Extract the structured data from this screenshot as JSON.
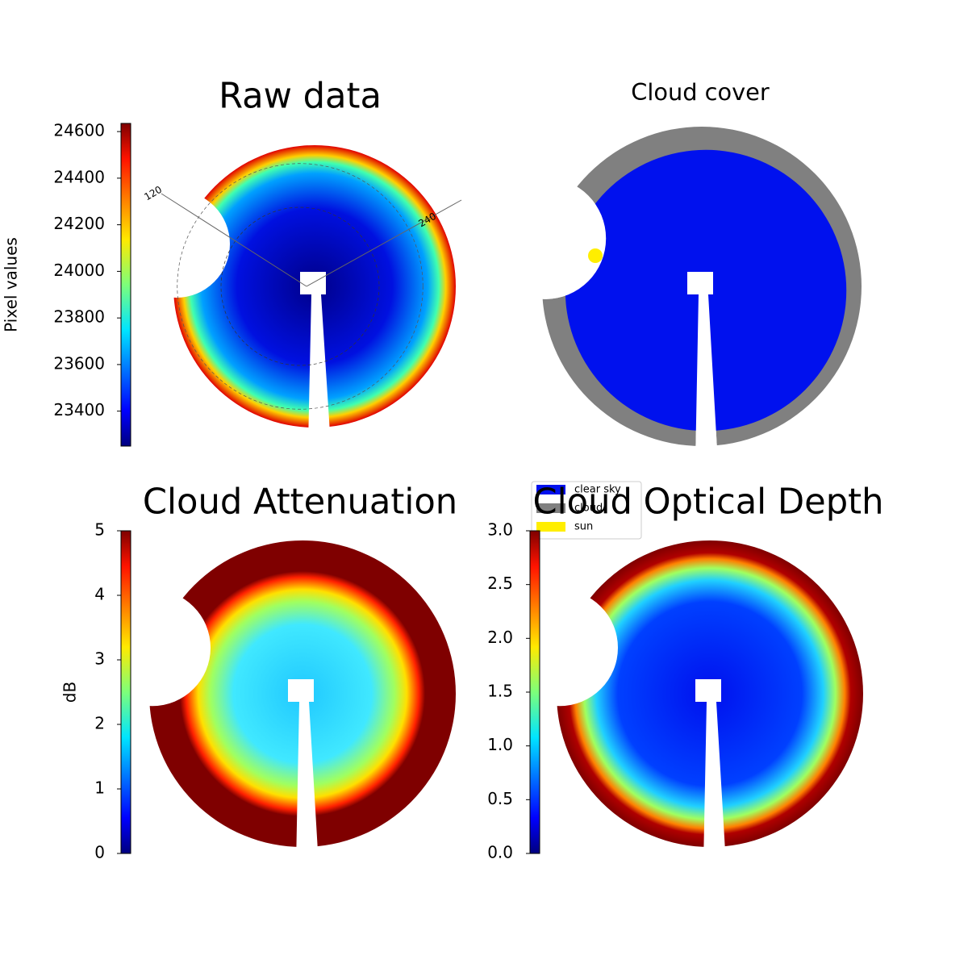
{
  "chart_data": [
    {
      "type": "image",
      "title": "Raw data",
      "colormap": "jet",
      "annotations": [
        "120",
        "240"
      ],
      "colorbar": {
        "label": "Pixel values",
        "ylim": [
          23250,
          24635
        ],
        "yticks": [
          23400,
          23600,
          23800,
          24000,
          24200,
          24400,
          24600
        ]
      }
    },
    {
      "type": "categorical-image",
      "title": "Cloud cover",
      "legend": "lower-left",
      "series": [
        {
          "name": "clear sky",
          "color": "#0011ee"
        },
        {
          "name": "cloud",
          "color": "#808080"
        },
        {
          "name": "sun",
          "color": "#ffee00"
        }
      ]
    },
    {
      "type": "image",
      "title": "Cloud Attenuation",
      "colormap": "jet",
      "colorbar": {
        "label": "dB",
        "ylim": [
          0,
          5
        ],
        "yticks": [
          0,
          1,
          2,
          3,
          4,
          5
        ]
      }
    },
    {
      "type": "image",
      "title": "Cloud Optical Depth",
      "colormap": "jet",
      "colorbar": {
        "ylim": [
          0,
          3
        ],
        "yticks": [
          {
            "value": 0,
            "label": "0.0"
          },
          {
            "value": 0.5,
            "label": "0.5"
          },
          {
            "value": 1,
            "label": "1.0"
          },
          {
            "value": 1.5,
            "label": "1.5"
          },
          {
            "value": 2,
            "label": "2.0"
          },
          {
            "value": 2.5,
            "label": "2.5"
          },
          {
            "value": 3,
            "label": "3.0"
          }
        ]
      }
    }
  ]
}
